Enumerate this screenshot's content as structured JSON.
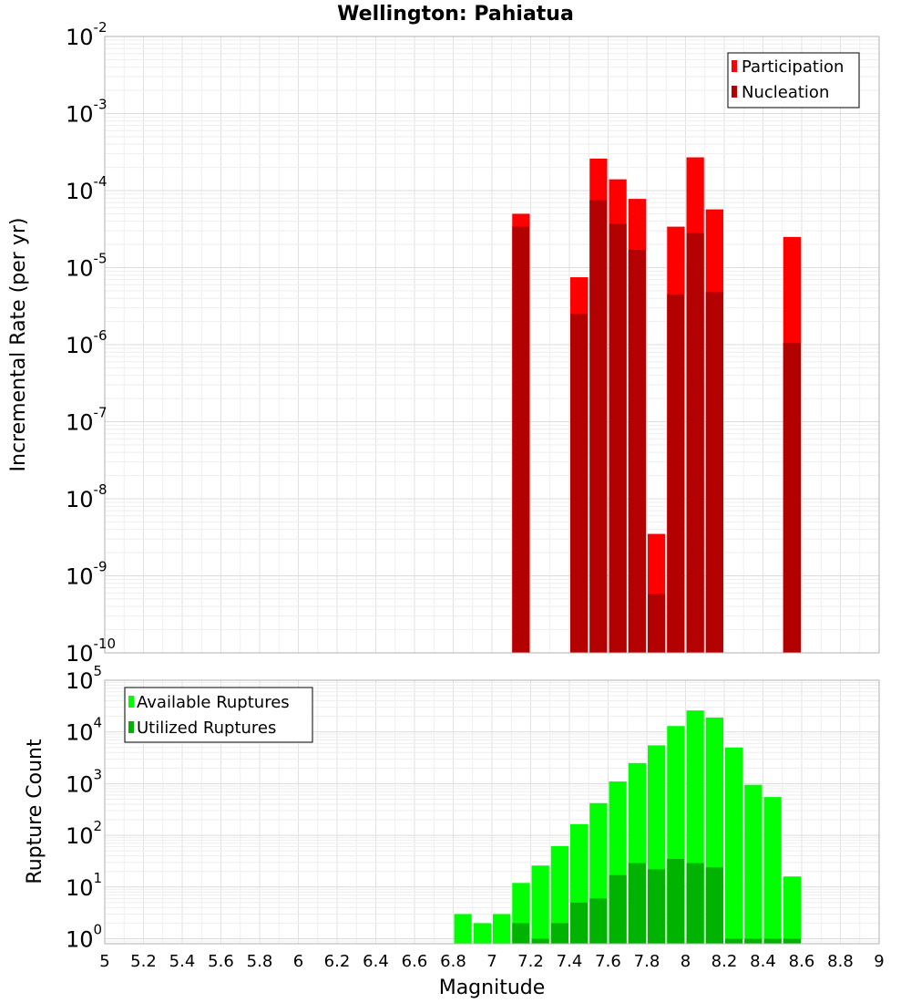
{
  "chart_data": [
    {
      "type": "bar",
      "title": "Wellington: Pahiatua",
      "xlabel": "",
      "ylabel": "Incremental Rate (per yr)",
      "yscale": "log",
      "xlim": [
        5,
        9
      ],
      "ylim": [
        1e-10,
        0.01
      ],
      "y_tick_exponents": [
        -10,
        -9,
        -8,
        -7,
        -6,
        -5,
        -4,
        -3,
        -2
      ],
      "legend_position": "top-right",
      "bar_width": 0.1,
      "series": [
        {
          "name": "Participation",
          "color": "#ff0000",
          "x": [
            7.15,
            7.45,
            7.55,
            7.65,
            7.75,
            7.85,
            7.95,
            8.05,
            8.15,
            8.55
          ],
          "values": [
            5e-05,
            7.5e-06,
            0.00026,
            0.00014,
            7.8e-05,
            3.5e-09,
            3.4e-05,
            0.00027,
            5.7e-05,
            2.5e-05
          ]
        },
        {
          "name": "Nucleation",
          "color": "#b30000",
          "x": [
            7.15,
            7.45,
            7.55,
            7.65,
            7.75,
            7.85,
            7.95,
            8.05,
            8.15,
            8.55
          ],
          "values": [
            3.4e-05,
            2.5e-06,
            7.5e-05,
            3.7e-05,
            1.7e-05,
            5.8e-10,
            4.5e-06,
            2.8e-05,
            4.8e-06,
            1.05e-06
          ]
        }
      ]
    },
    {
      "type": "bar",
      "title": "",
      "xlabel": "Magnitude",
      "ylabel": "Rupture Count",
      "yscale": "log",
      "xlim": [
        5,
        9
      ],
      "ylim": [
        0.8,
        100000.0
      ],
      "x_ticks": [
        "5",
        "5.2",
        "5.4",
        "5.6",
        "5.8",
        "6",
        "6.2",
        "6.4",
        "6.6",
        "6.8",
        "7",
        "7.2",
        "7.4",
        "7.6",
        "7.8",
        "8",
        "8.2",
        "8.4",
        "8.6",
        "8.8",
        "9"
      ],
      "y_tick_exponents": [
        0,
        1,
        2,
        3,
        4,
        5
      ],
      "legend_position": "top-left",
      "bar_width": 0.1,
      "series": [
        {
          "name": "Available Ruptures",
          "color": "#00ff00",
          "x": [
            6.85,
            6.95,
            7.05,
            7.15,
            7.25,
            7.35,
            7.45,
            7.55,
            7.65,
            7.75,
            7.85,
            7.95,
            8.05,
            8.15,
            8.25,
            8.35,
            8.45,
            8.55
          ],
          "values": [
            3,
            2,
            3,
            12,
            26,
            62,
            165,
            420,
            1100,
            2500,
            5500,
            13000,
            26000,
            19000,
            5000,
            950,
            550,
            16
          ]
        },
        {
          "name": "Utilized Ruptures",
          "color": "#00b300",
          "x": [
            7.15,
            7.25,
            7.35,
            7.45,
            7.55,
            7.65,
            7.75,
            7.85,
            7.95,
            8.05,
            8.15,
            8.25,
            8.35,
            8.45,
            8.55
          ],
          "values": [
            2,
            1,
            2,
            5,
            6,
            17,
            29,
            22,
            35,
            29,
            24,
            1,
            1,
            1,
            1
          ]
        }
      ]
    }
  ]
}
